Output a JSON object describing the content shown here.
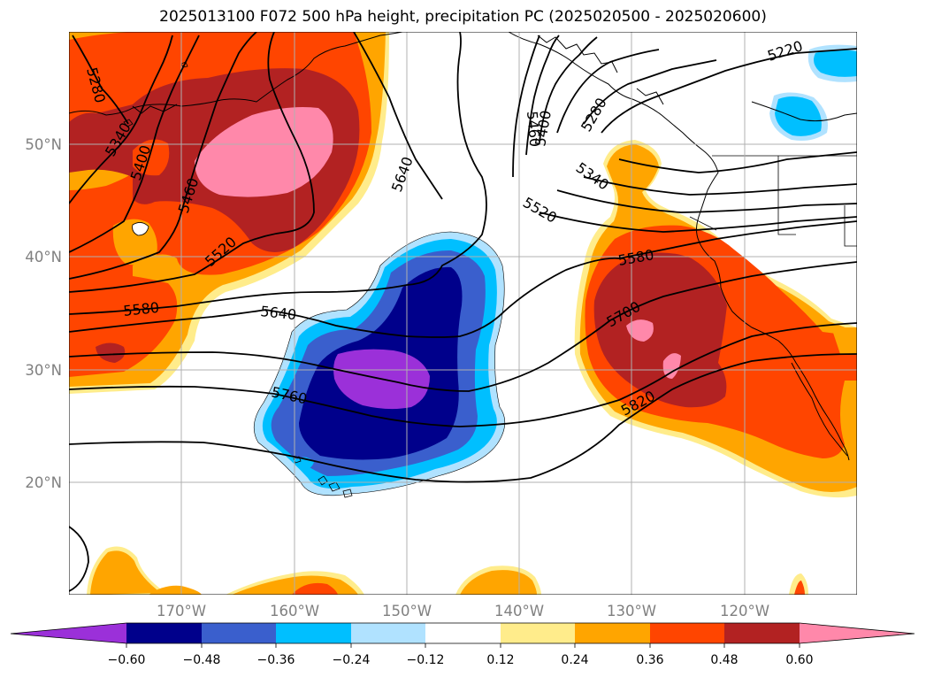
{
  "title": "2025013100 F072 500 hPa height, precipitation PC (2025020500 - 2025020600)",
  "latitude_labels": [
    "50°N",
    "40°N",
    "30°N",
    "20°N"
  ],
  "longitude_labels": [
    "170°W",
    "160°W",
    "150°W",
    "140°W",
    "130°W",
    "120°W"
  ],
  "height_contour_labels": [
    "5220",
    "5280",
    "5340",
    "5400",
    "5460",
    "5520",
    "5580",
    "5640",
    "5700",
    "5760",
    "5820"
  ],
  "colorbar": {
    "levels": [
      "−0.60",
      "−0.48",
      "−0.36",
      "−0.24",
      "−0.12",
      "0.12",
      "0.24",
      "0.36",
      "0.48",
      "0.60"
    ],
    "colors": [
      "#9b30d9",
      "#00008b",
      "#3a5fcd",
      "#00bfff",
      "#b0e2ff",
      "#ffffff",
      "#ffec8b",
      "#ffa500",
      "#ff4500",
      "#b22222",
      "#ff88aa",
      "#ff88aa"
    ]
  },
  "colors": {
    "purple": "#9b30d9",
    "navy": "#00008b",
    "royal_blue": "#3a5fcd",
    "deep_sky_blue": "#00bfff",
    "light_blue": "#b0e2ff",
    "light_yellow": "#ffec8b",
    "orange": "#ffa500",
    "orange_red": "#ff4500",
    "firebrick": "#b22222",
    "pink": "#ff88aa",
    "gridline": "#b0b0b0"
  }
}
